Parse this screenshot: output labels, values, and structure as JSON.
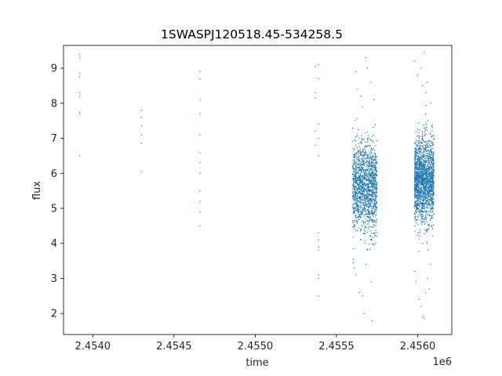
{
  "chart_data": {
    "type": "scatter",
    "title": "1SWASPJ120518.45-534258.5",
    "xlabel": "time",
    "ylabel": "flux",
    "x_offset_label": "1e6",
    "x_ticks": [
      2.454,
      2.4545,
      2.455,
      2.4555,
      2.456
    ],
    "x_tick_labels": [
      "2.4540",
      "2.4545",
      "2.4550",
      "2.4555",
      "2.4560"
    ],
    "y_ticks": [
      2,
      3,
      4,
      5,
      6,
      7,
      8,
      9
    ],
    "y_tick_labels": [
      "2",
      "3",
      "4",
      "5",
      "6",
      "7",
      "8",
      "9"
    ],
    "xlim": [
      2.45382,
      2.45621
    ],
    "ylim": [
      1.4,
      9.65
    ],
    "grid": false,
    "marker_color": "#1f77b4",
    "series": [
      {
        "points": [
          [
            2.45392,
            9.4
          ],
          [
            2.45392,
            9.3
          ],
          [
            2.45392,
            8.85
          ],
          [
            2.45392,
            8.75
          ],
          [
            2.45392,
            8.3
          ],
          [
            2.45392,
            8.2
          ],
          [
            2.45392,
            7.75
          ],
          [
            2.45392,
            7.7
          ],
          [
            2.45392,
            6.5
          ],
          [
            2.4543,
            7.8
          ],
          [
            2.4543,
            7.6
          ],
          [
            2.4543,
            7.35
          ],
          [
            2.4543,
            7.1
          ],
          [
            2.4543,
            6.85
          ],
          [
            2.4543,
            6.05
          ],
          [
            2.45466,
            8.9
          ],
          [
            2.45466,
            8.7
          ],
          [
            2.45466,
            8.1
          ],
          [
            2.45466,
            7.7
          ],
          [
            2.45466,
            7.1
          ],
          [
            2.45466,
            6.6
          ],
          [
            2.45466,
            6.3
          ],
          [
            2.45466,
            6.0
          ],
          [
            2.45466,
            5.5
          ],
          [
            2.45466,
            5.2
          ],
          [
            2.45466,
            4.9
          ],
          [
            2.45466,
            4.5
          ],
          [
            2.45537,
            9.05
          ],
          [
            2.45537,
            8.3
          ],
          [
            2.45537,
            8.15
          ],
          [
            2.45537,
            7.2
          ],
          [
            2.45537,
            6.8
          ],
          [
            2.45539,
            9.1
          ],
          [
            2.45539,
            8.7
          ],
          [
            2.45539,
            7.4
          ],
          [
            2.45539,
            7.0
          ],
          [
            2.45539,
            6.5
          ],
          [
            2.45539,
            4.3
          ],
          [
            2.45539,
            4.1
          ],
          [
            2.45539,
            3.9
          ],
          [
            2.45539,
            3.8
          ],
          [
            2.45539,
            3.1
          ],
          [
            2.45539,
            3.0
          ],
          [
            2.45539,
            2.5
          ]
        ],
        "clusters": [
          {
            "x_range": [
              2.4556,
              2.45575
            ],
            "y_center": 5.6,
            "y_spread": 0.62,
            "count": 1500
          },
          {
            "x_range": [
              2.45598,
              2.4561
            ],
            "y_center": 5.8,
            "y_spread": 0.6,
            "count": 1800
          }
        ],
        "outliers": [
          [
            2.45562,
            8.9
          ],
          [
            2.45563,
            8.4
          ],
          [
            2.45565,
            8.2
          ],
          [
            2.45566,
            7.9
          ],
          [
            2.45568,
            9.3
          ],
          [
            2.45569,
            9.0
          ],
          [
            2.45571,
            8.6
          ],
          [
            2.45573,
            8.1
          ],
          [
            2.45561,
            3.3
          ],
          [
            2.45562,
            3.1
          ],
          [
            2.45564,
            2.6
          ],
          [
            2.45566,
            2.5
          ],
          [
            2.45567,
            2.0
          ],
          [
            2.45568,
            3.4
          ],
          [
            2.45571,
            2.9
          ],
          [
            2.45572,
            1.8
          ],
          [
            2.45598,
            9.2
          ],
          [
            2.456,
            8.8
          ],
          [
            2.45602,
            9.0
          ],
          [
            2.45603,
            8.5
          ],
          [
            2.45604,
            9.45
          ],
          [
            2.45605,
            8.3
          ],
          [
            2.45606,
            8.6
          ],
          [
            2.45608,
            8.0
          ],
          [
            2.45598,
            3.2
          ],
          [
            2.45599,
            2.9
          ],
          [
            2.45601,
            2.4
          ],
          [
            2.45602,
            2.2
          ],
          [
            2.45603,
            1.9
          ],
          [
            2.45604,
            1.85
          ],
          [
            2.45605,
            2.6
          ],
          [
            2.45606,
            3.0
          ],
          [
            2.45607,
            2.7
          ],
          [
            2.45608,
            3.4
          ]
        ]
      }
    ]
  }
}
